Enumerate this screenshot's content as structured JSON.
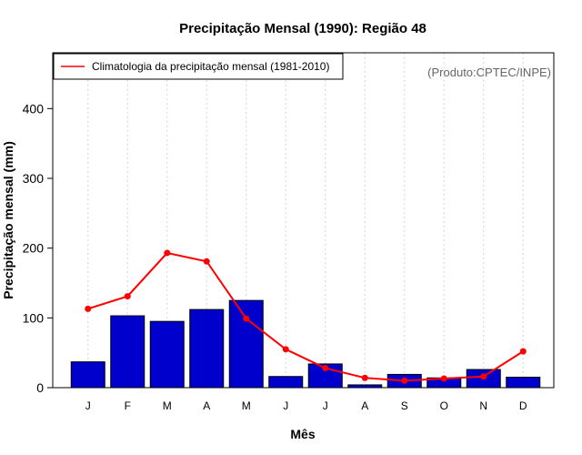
{
  "chart_data": {
    "type": "bar",
    "title": "Precipitação Mensal (1990): Região 48",
    "xlabel": "Mês",
    "ylabel": "Precipitação mensal (mm)",
    "categories": [
      "J",
      "F",
      "M",
      "A",
      "M",
      "J",
      "J",
      "A",
      "S",
      "O",
      "N",
      "D"
    ],
    "ylim": [
      0,
      480
    ],
    "yticks": [
      0,
      100,
      200,
      300,
      400
    ],
    "grid": true,
    "legend_position": "top-left",
    "credit": "(Produto:CPTEC/INPE)",
    "series": [
      {
        "name": "Precipitação mensal 1990",
        "type": "bar",
        "color": "#0000cd",
        "values": [
          37,
          103,
          95,
          112,
          125,
          16,
          34,
          4,
          19,
          14,
          26,
          15
        ]
      },
      {
        "name": "Climatologia da precipitação mensal (1981-2010)",
        "type": "line",
        "color": "#ff0000",
        "values": [
          113,
          131,
          193,
          181,
          99,
          55,
          28,
          14,
          10,
          13,
          16,
          52
        ]
      }
    ]
  }
}
